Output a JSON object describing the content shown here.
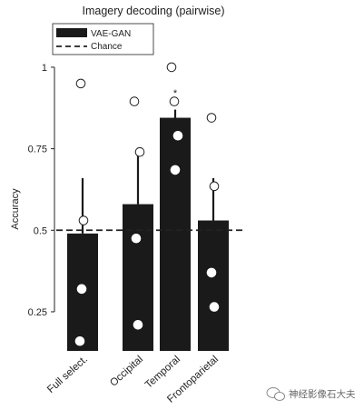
{
  "chart_data": {
    "type": "bar",
    "title": "Imagery decoding (pairwise)",
    "xlabel": "",
    "ylabel": "Accuracy",
    "ylim": [
      0.13,
      1.05
    ],
    "yticks": [
      0.25,
      0.5,
      0.75,
      1
    ],
    "ytick_labels": [
      "0.25",
      "0.5",
      "0.75",
      "1"
    ],
    "categories": [
      "Full select.",
      "Occipital",
      "Temporal",
      "Frontoparietal"
    ],
    "series": [
      {
        "name": "VAE-GAN",
        "values": [
          0.49,
          0.58,
          0.845,
          0.53
        ],
        "error_upper": [
          0.66,
          0.74,
          0.87,
          0.66
        ],
        "color": "#1a1a1a"
      }
    ],
    "points": [
      [
        0.95,
        0.53,
        0.32,
        0.16
      ],
      [
        0.895,
        0.74,
        0.475,
        0.21
      ],
      [
        1.0,
        0.895,
        0.79,
        0.685
      ],
      [
        0.845,
        0.635,
        0.37,
        0.265
      ]
    ],
    "reference_line": {
      "name": "Chance",
      "value": 0.5,
      "style": "dashed"
    },
    "annotations": [
      {
        "category": "Temporal",
        "text": "*"
      }
    ],
    "legend": {
      "position": "top-left",
      "entries": [
        "VAE-GAN",
        "Chance"
      ]
    },
    "grid": false
  },
  "watermark": {
    "text": "神经影像石大夫"
  }
}
